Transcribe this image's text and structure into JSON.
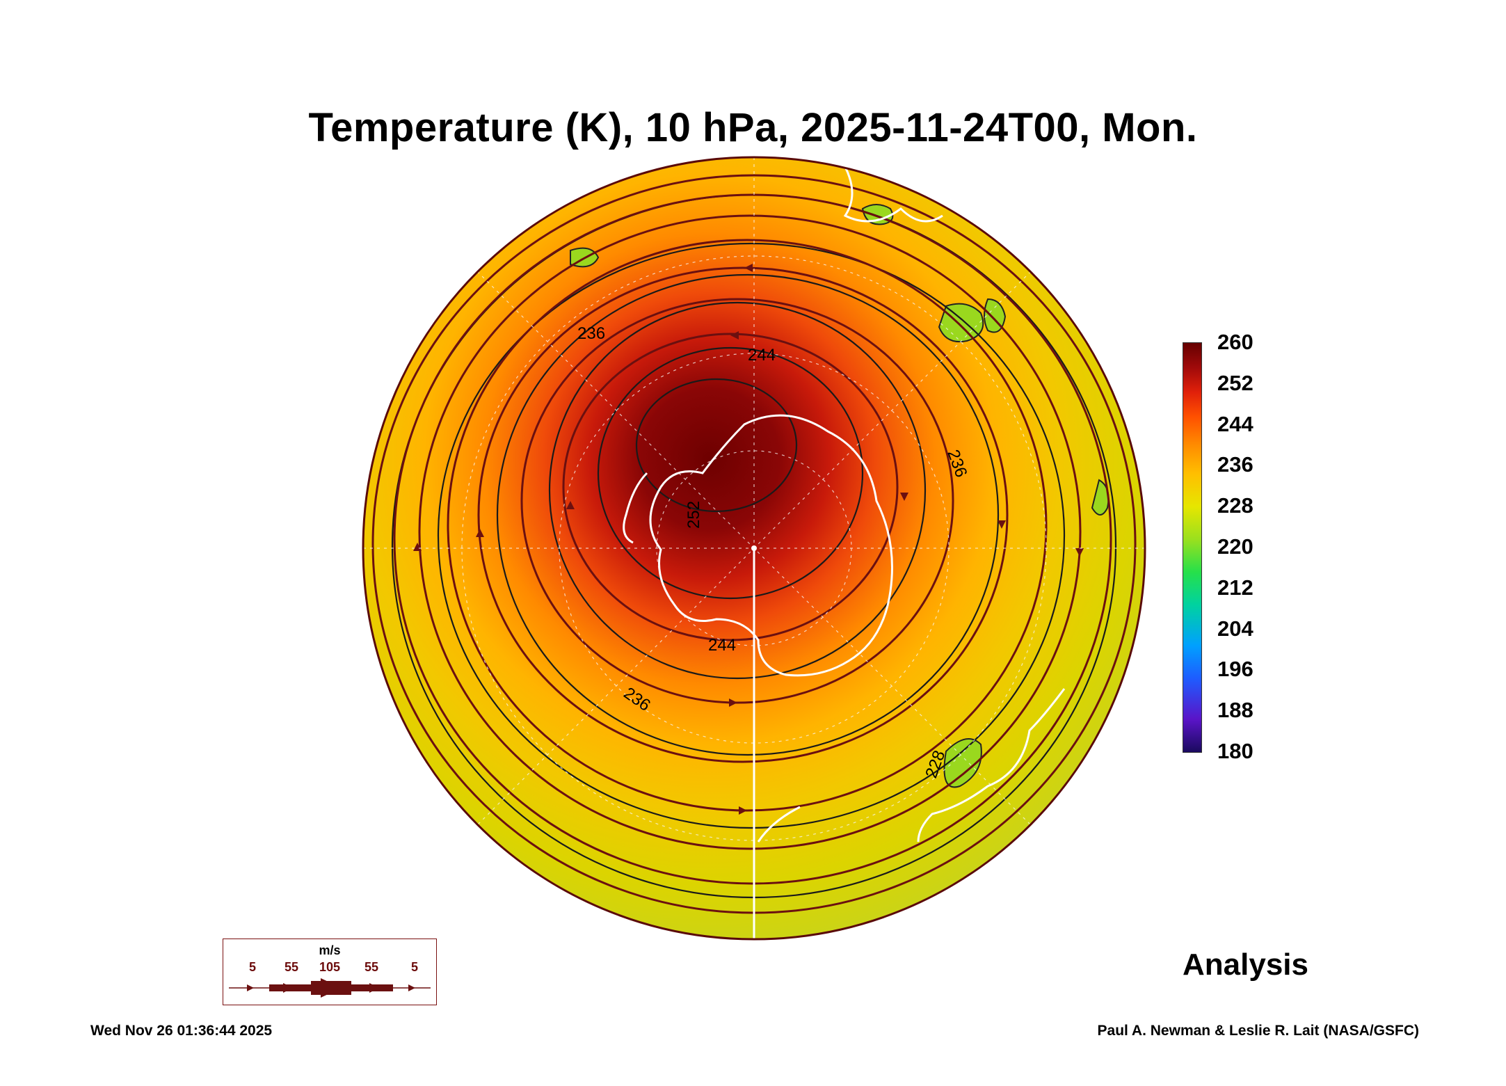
{
  "title": "Temperature (K), 10 hPa, 2025-11-24T00, Mon.",
  "colorbar": {
    "ticks": [
      "260",
      "252",
      "244",
      "236",
      "228",
      "220",
      "212",
      "204",
      "196",
      "188",
      "180"
    ],
    "min": 180,
    "max": 260,
    "colors": [
      "#1a0a5e",
      "#5a14c8",
      "#1e5cff",
      "#00a0ff",
      "#00d2a0",
      "#26e04a",
      "#9ae01e",
      "#e6e600",
      "#ffbf00",
      "#ff8c00",
      "#ff5000",
      "#e0200a",
      "#a00a0a",
      "#660000"
    ]
  },
  "contour_labels": [
    "236",
    "244",
    "252",
    "236",
    "244",
    "236",
    "228"
  ],
  "wind_legend": {
    "unit": "m/s",
    "values": [
      "5",
      "55",
      "105",
      "55",
      "5"
    ]
  },
  "analysis_label": "Analysis",
  "timestamp": "Wed Nov 26 01:36:44 2025",
  "credit": "Paul A. Newman & Leslie R. Lait (NASA/GSFC)",
  "colors": {
    "warm_core": "#7a0000",
    "cool_edge": "#d4d400",
    "streamline": "#6b1010",
    "coastline": "#ffffff"
  }
}
